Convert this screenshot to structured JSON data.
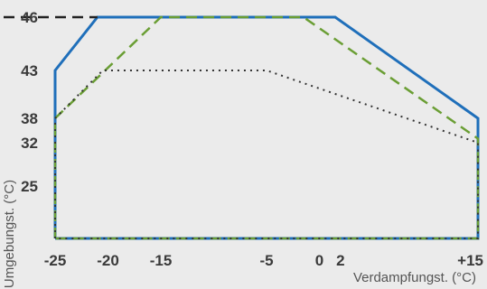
{
  "chart_data": {
    "type": "line",
    "title": "",
    "xlabel": "Verdampfungst. (°C)",
    "ylabel": "Umgebungst. (°C)",
    "xlim": [
      -25,
      15
    ],
    "ylim": [
      15,
      46
    ],
    "x_ticks": [
      {
        "value": -25,
        "label": "-25"
      },
      {
        "value": -20,
        "label": "-20"
      },
      {
        "value": -15,
        "label": "-15"
      },
      {
        "value": -5,
        "label": "-5"
      },
      {
        "value": 0,
        "label": "0"
      },
      {
        "value": 2,
        "label": "2"
      },
      {
        "value": 15,
        "label": "+15"
      }
    ],
    "y_ticks": [
      {
        "value": 46,
        "label": "46"
      },
      {
        "value": 43,
        "label": "43"
      },
      {
        "value": 38,
        "label": "38"
      },
      {
        "value": 32,
        "label": "32"
      },
      {
        "value": 25,
        "label": "25"
      }
    ],
    "series": [
      {
        "style": "solid",
        "color": "#1f6fba",
        "points": [
          [
            -25,
            15
          ],
          [
            -25,
            43
          ],
          [
            -21,
            46
          ],
          [
            1.5,
            46
          ],
          [
            15,
            38
          ],
          [
            15,
            15
          ],
          [
            -25,
            15
          ]
        ]
      },
      {
        "style": "dashed",
        "color": "#6a9e34",
        "points": [
          [
            -25,
            15
          ],
          [
            -25,
            38
          ],
          [
            -15,
            46
          ],
          [
            -1.5,
            46
          ],
          [
            15,
            33
          ],
          [
            15,
            15
          ],
          [
            -25,
            15
          ]
        ]
      },
      {
        "style": "dotted",
        "color": "#333333",
        "points": [
          [
            -25,
            15
          ],
          [
            -25,
            38
          ],
          [
            -20.5,
            43
          ],
          [
            -5,
            43
          ],
          [
            15,
            32
          ],
          [
            15,
            15
          ],
          [
            -25,
            15
          ]
        ]
      },
      {
        "style": "dashed",
        "color": "#222222",
        "points": [
          [
            -31.5,
            46
          ],
          [
            -21,
            46
          ]
        ]
      }
    ]
  }
}
